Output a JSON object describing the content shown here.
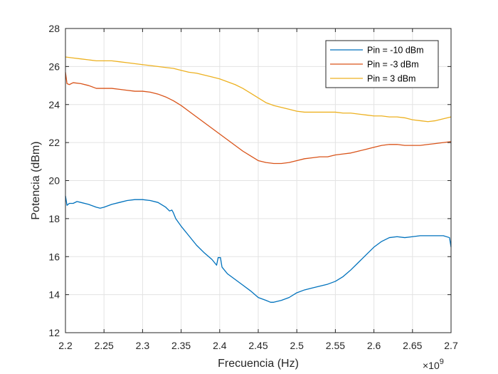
{
  "chart_data": {
    "type": "line",
    "xlabel": "Frecuencia (Hz)",
    "ylabel": "Potencia (dBm)",
    "x_exponent_label": "×10",
    "x_exponent_power": "9",
    "xlim": [
      2.2,
      2.7
    ],
    "ylim": [
      12,
      28
    ],
    "x_ticks": [
      "2.2",
      "2.25",
      "2.3",
      "2.35",
      "2.4",
      "2.45",
      "2.5",
      "2.55",
      "2.6",
      "2.65",
      "2.7"
    ],
    "y_ticks": [
      "12",
      "14",
      "16",
      "18",
      "20",
      "22",
      "24",
      "26",
      "28"
    ],
    "grid": true,
    "legend_position": "top-right",
    "series": [
      {
        "name": "Pin = -10 dBm",
        "color": "#0072BD",
        "points": [
          [
            2.2,
            19.2
          ],
          [
            2.202,
            18.7
          ],
          [
            2.205,
            18.8
          ],
          [
            2.21,
            18.8
          ],
          [
            2.215,
            18.9
          ],
          [
            2.22,
            18.85
          ],
          [
            2.23,
            18.75
          ],
          [
            2.24,
            18.6
          ],
          [
            2.245,
            18.55
          ],
          [
            2.25,
            18.6
          ],
          [
            2.26,
            18.75
          ],
          [
            2.27,
            18.85
          ],
          [
            2.28,
            18.95
          ],
          [
            2.29,
            19.0
          ],
          [
            2.3,
            19.0
          ],
          [
            2.31,
            18.95
          ],
          [
            2.32,
            18.85
          ],
          [
            2.33,
            18.6
          ],
          [
            2.335,
            18.4
          ],
          [
            2.338,
            18.45
          ],
          [
            2.34,
            18.3
          ],
          [
            2.343,
            18.0
          ],
          [
            2.35,
            17.6
          ],
          [
            2.36,
            17.1
          ],
          [
            2.37,
            16.6
          ],
          [
            2.38,
            16.2
          ],
          [
            2.39,
            15.85
          ],
          [
            2.396,
            15.55
          ],
          [
            2.398,
            15.95
          ],
          [
            2.401,
            15.95
          ],
          [
            2.403,
            15.45
          ],
          [
            2.41,
            15.1
          ],
          [
            2.42,
            14.8
          ],
          [
            2.43,
            14.5
          ],
          [
            2.44,
            14.2
          ],
          [
            2.45,
            13.85
          ],
          [
            2.46,
            13.7
          ],
          [
            2.466,
            13.6
          ],
          [
            2.47,
            13.6
          ],
          [
            2.48,
            13.7
          ],
          [
            2.49,
            13.85
          ],
          [
            2.5,
            14.1
          ],
          [
            2.51,
            14.25
          ],
          [
            2.52,
            14.35
          ],
          [
            2.53,
            14.45
          ],
          [
            2.54,
            14.55
          ],
          [
            2.55,
            14.7
          ],
          [
            2.56,
            14.95
          ],
          [
            2.57,
            15.3
          ],
          [
            2.58,
            15.7
          ],
          [
            2.59,
            16.1
          ],
          [
            2.6,
            16.5
          ],
          [
            2.61,
            16.8
          ],
          [
            2.62,
            17.0
          ],
          [
            2.63,
            17.05
          ],
          [
            2.64,
            17.0
          ],
          [
            2.65,
            17.05
          ],
          [
            2.66,
            17.1
          ],
          [
            2.67,
            17.1
          ],
          [
            2.68,
            17.1
          ],
          [
            2.69,
            17.1
          ],
          [
            2.698,
            17.0
          ],
          [
            2.7,
            16.5
          ]
        ]
      },
      {
        "name": "Pin = -3 dBm",
        "color": "#D95319",
        "points": [
          [
            2.2,
            25.7
          ],
          [
            2.202,
            25.1
          ],
          [
            2.205,
            25.05
          ],
          [
            2.21,
            25.15
          ],
          [
            2.22,
            25.1
          ],
          [
            2.23,
            25.0
          ],
          [
            2.24,
            24.85
          ],
          [
            2.25,
            24.85
          ],
          [
            2.26,
            24.85
          ],
          [
            2.27,
            24.8
          ],
          [
            2.28,
            24.75
          ],
          [
            2.29,
            24.7
          ],
          [
            2.3,
            24.7
          ],
          [
            2.31,
            24.65
          ],
          [
            2.32,
            24.55
          ],
          [
            2.33,
            24.4
          ],
          [
            2.34,
            24.2
          ],
          [
            2.35,
            23.95
          ],
          [
            2.36,
            23.65
          ],
          [
            2.37,
            23.35
          ],
          [
            2.38,
            23.05
          ],
          [
            2.39,
            22.75
          ],
          [
            2.4,
            22.45
          ],
          [
            2.41,
            22.15
          ],
          [
            2.42,
            21.85
          ],
          [
            2.43,
            21.55
          ],
          [
            2.44,
            21.3
          ],
          [
            2.45,
            21.05
          ],
          [
            2.46,
            20.95
          ],
          [
            2.47,
            20.9
          ],
          [
            2.48,
            20.9
          ],
          [
            2.49,
            20.95
          ],
          [
            2.5,
            21.05
          ],
          [
            2.51,
            21.15
          ],
          [
            2.52,
            21.2
          ],
          [
            2.53,
            21.25
          ],
          [
            2.54,
            21.25
          ],
          [
            2.55,
            21.35
          ],
          [
            2.56,
            21.4
          ],
          [
            2.57,
            21.45
          ],
          [
            2.58,
            21.55
          ],
          [
            2.59,
            21.65
          ],
          [
            2.6,
            21.75
          ],
          [
            2.61,
            21.85
          ],
          [
            2.62,
            21.9
          ],
          [
            2.63,
            21.9
          ],
          [
            2.64,
            21.85
          ],
          [
            2.65,
            21.85
          ],
          [
            2.66,
            21.85
          ],
          [
            2.67,
            21.9
          ],
          [
            2.68,
            21.95
          ],
          [
            2.69,
            22.0
          ],
          [
            2.7,
            22.05
          ]
        ]
      },
      {
        "name": "Pin = 3 dBm",
        "color": "#EDB120",
        "points": [
          [
            2.2,
            26.5
          ],
          [
            2.21,
            26.45
          ],
          [
            2.22,
            26.4
          ],
          [
            2.23,
            26.35
          ],
          [
            2.24,
            26.3
          ],
          [
            2.25,
            26.3
          ],
          [
            2.26,
            26.3
          ],
          [
            2.27,
            26.25
          ],
          [
            2.28,
            26.2
          ],
          [
            2.29,
            26.15
          ],
          [
            2.3,
            26.1
          ],
          [
            2.31,
            26.05
          ],
          [
            2.32,
            26.0
          ],
          [
            2.33,
            25.95
          ],
          [
            2.34,
            25.9
          ],
          [
            2.35,
            25.8
          ],
          [
            2.36,
            25.7
          ],
          [
            2.37,
            25.65
          ],
          [
            2.38,
            25.55
          ],
          [
            2.39,
            25.45
          ],
          [
            2.4,
            25.35
          ],
          [
            2.41,
            25.2
          ],
          [
            2.42,
            25.05
          ],
          [
            2.43,
            24.85
          ],
          [
            2.44,
            24.6
          ],
          [
            2.45,
            24.35
          ],
          [
            2.46,
            24.1
          ],
          [
            2.47,
            23.95
          ],
          [
            2.48,
            23.85
          ],
          [
            2.49,
            23.75
          ],
          [
            2.5,
            23.65
          ],
          [
            2.51,
            23.6
          ],
          [
            2.52,
            23.6
          ],
          [
            2.53,
            23.6
          ],
          [
            2.54,
            23.6
          ],
          [
            2.55,
            23.6
          ],
          [
            2.56,
            23.55
          ],
          [
            2.57,
            23.55
          ],
          [
            2.58,
            23.5
          ],
          [
            2.59,
            23.45
          ],
          [
            2.6,
            23.4
          ],
          [
            2.61,
            23.4
          ],
          [
            2.62,
            23.35
          ],
          [
            2.63,
            23.35
          ],
          [
            2.64,
            23.3
          ],
          [
            2.65,
            23.2
          ],
          [
            2.66,
            23.15
          ],
          [
            2.67,
            23.1
          ],
          [
            2.68,
            23.15
          ],
          [
            2.69,
            23.25
          ],
          [
            2.7,
            23.35
          ]
        ]
      }
    ]
  }
}
